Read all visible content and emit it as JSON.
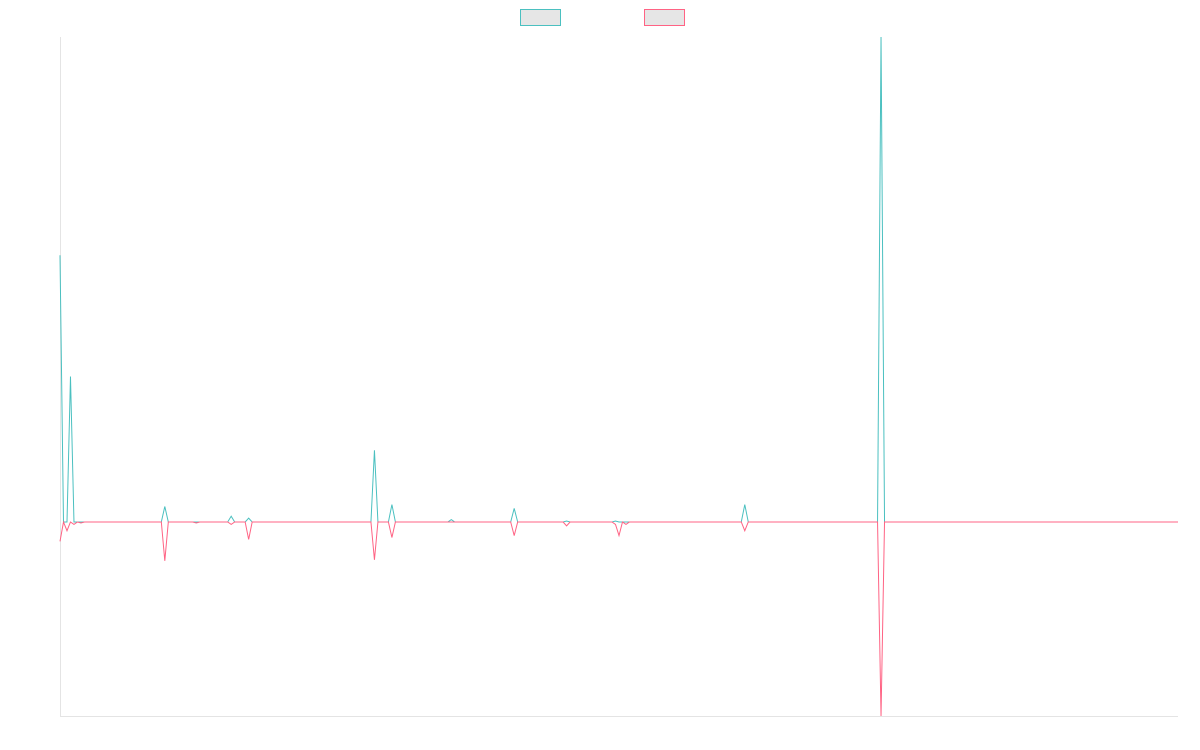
{
  "chart_data": {
    "type": "line",
    "title": "",
    "xlabel": "",
    "ylabel": "",
    "grid": false,
    "legend_position": "top-center",
    "x_count": 321,
    "ylim": [
      -400,
      1000
    ],
    "series": [
      {
        "color": "#4bc0c0",
        "fill": "#e6e6e6",
        "points": [
          [
            0,
            550
          ],
          [
            1,
            0
          ],
          [
            2,
            0
          ],
          [
            3,
            300
          ],
          [
            4,
            0
          ],
          [
            5,
            0
          ],
          [
            6,
            0
          ],
          [
            29,
            0
          ],
          [
            30,
            32
          ],
          [
            31,
            0
          ],
          [
            38,
            0
          ],
          [
            39,
            0
          ],
          [
            40,
            0
          ],
          [
            48,
            0
          ],
          [
            49,
            12
          ],
          [
            50,
            0
          ],
          [
            53,
            0
          ],
          [
            54,
            8
          ],
          [
            55,
            0
          ],
          [
            89,
            0
          ],
          [
            90,
            148
          ],
          [
            91,
            0
          ],
          [
            94,
            0
          ],
          [
            95,
            36
          ],
          [
            96,
            0
          ],
          [
            111,
            0
          ],
          [
            112,
            5
          ],
          [
            113,
            0
          ],
          [
            129,
            0
          ],
          [
            130,
            28
          ],
          [
            131,
            0
          ],
          [
            144,
            0
          ],
          [
            145,
            2
          ],
          [
            146,
            0
          ],
          [
            158,
            0
          ],
          [
            159,
            2
          ],
          [
            160,
            0
          ],
          [
            161,
            0
          ],
          [
            195,
            0
          ],
          [
            196,
            36
          ],
          [
            197,
            0
          ],
          [
            234,
            0
          ],
          [
            235,
            1000
          ],
          [
            236,
            0
          ],
          [
            320,
            0
          ]
        ]
      },
      {
        "color": "#ff6384",
        "fill": "#e6e6e6",
        "points": [
          [
            0,
            -40
          ],
          [
            1,
            0
          ],
          [
            2,
            -18
          ],
          [
            3,
            0
          ],
          [
            4,
            -5
          ],
          [
            5,
            0
          ],
          [
            6,
            -2
          ],
          [
            7,
            0
          ],
          [
            29,
            0
          ],
          [
            30,
            -80
          ],
          [
            31,
            0
          ],
          [
            38,
            0
          ],
          [
            39,
            -2
          ],
          [
            40,
            0
          ],
          [
            48,
            0
          ],
          [
            49,
            -5
          ],
          [
            50,
            0
          ],
          [
            53,
            0
          ],
          [
            54,
            -36
          ],
          [
            55,
            0
          ],
          [
            89,
            0
          ],
          [
            90,
            -78
          ],
          [
            91,
            0
          ],
          [
            94,
            0
          ],
          [
            95,
            -32
          ],
          [
            96,
            0
          ],
          [
            129,
            0
          ],
          [
            130,
            -28
          ],
          [
            131,
            0
          ],
          [
            144,
            0
          ],
          [
            145,
            -8
          ],
          [
            146,
            0
          ],
          [
            158,
            0
          ],
          [
            159,
            -5
          ],
          [
            160,
            -28
          ],
          [
            161,
            0
          ],
          [
            162,
            -5
          ],
          [
            163,
            0
          ],
          [
            195,
            0
          ],
          [
            196,
            -18
          ],
          [
            197,
            0
          ],
          [
            234,
            0
          ],
          [
            235,
            -400
          ],
          [
            236,
            0
          ],
          [
            320,
            0
          ]
        ]
      }
    ]
  }
}
